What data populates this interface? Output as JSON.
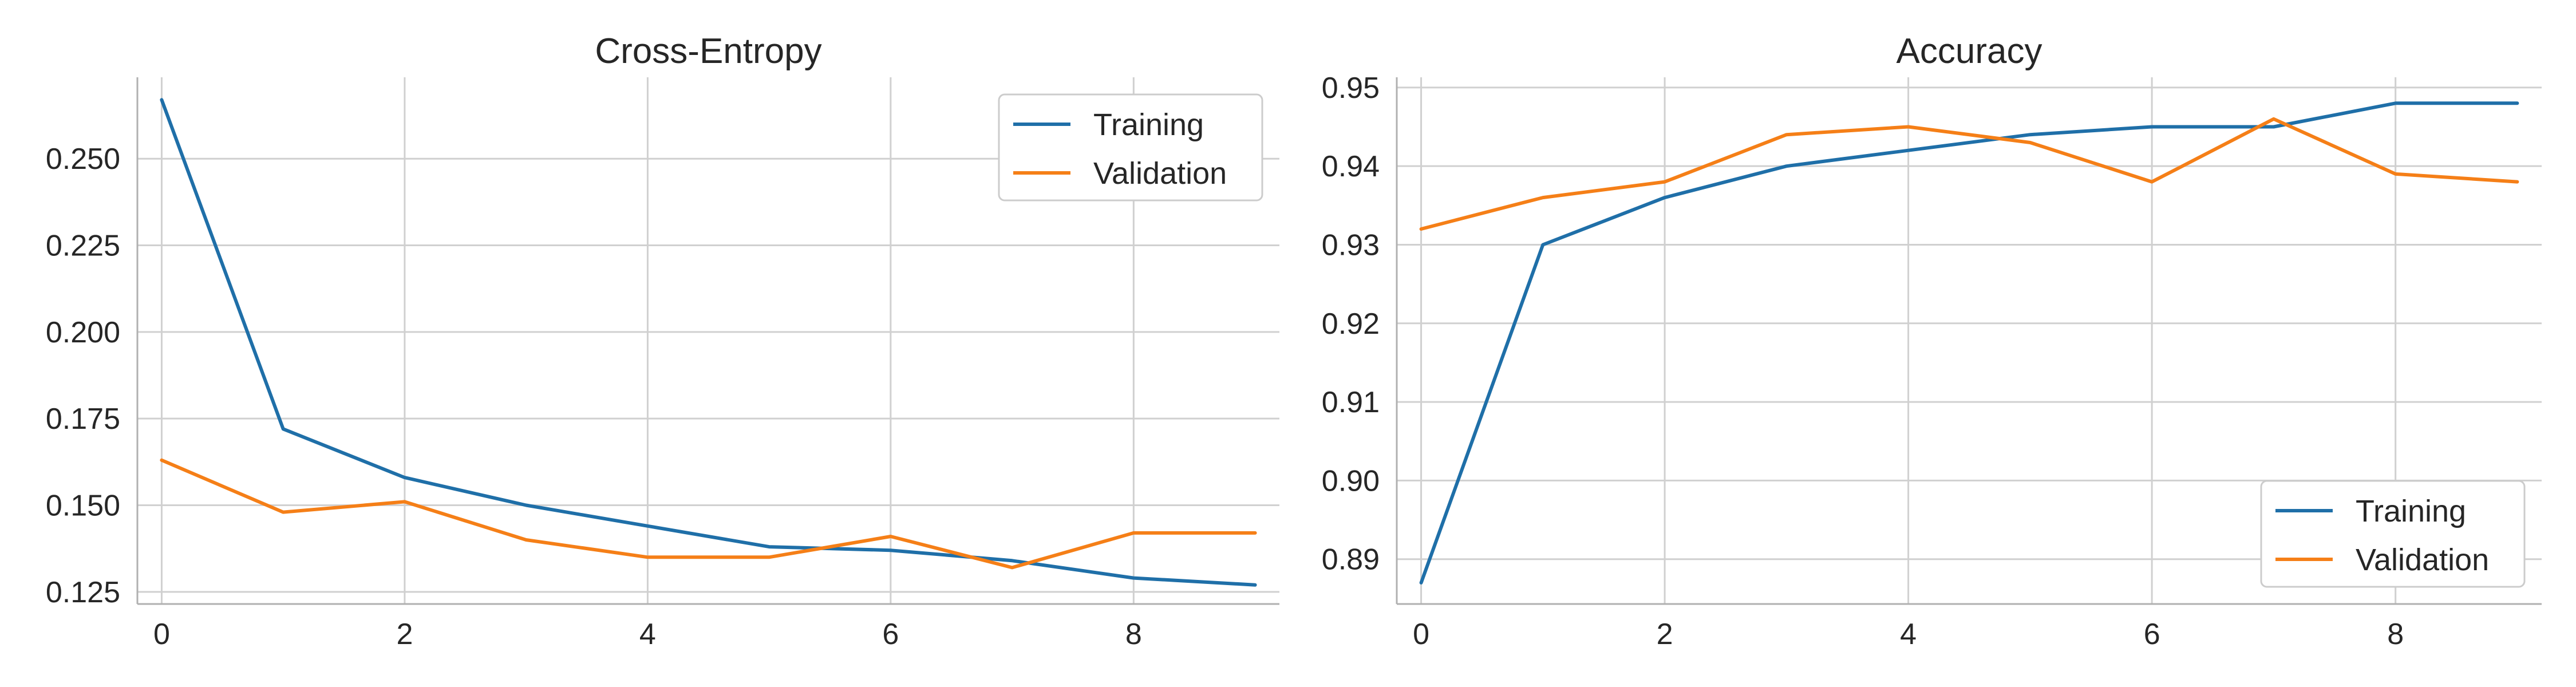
{
  "chart_data": [
    {
      "type": "line",
      "title": "Cross-Entropy",
      "xlabel": "",
      "ylabel": "",
      "x": [
        0,
        1,
        2,
        3,
        4,
        5,
        6,
        7,
        8,
        9
      ],
      "xlim": [
        -0.2,
        9.2
      ],
      "ylim": [
        0.1215,
        0.2735
      ],
      "xticks": [
        0,
        2,
        4,
        6,
        8
      ],
      "xtick_labels": [
        "0",
        "2",
        "4",
        "6",
        "8"
      ],
      "yticks": [
        0.125,
        0.15,
        0.175,
        0.2,
        0.225,
        0.25
      ],
      "ytick_labels": [
        "0.125",
        "0.150",
        "0.175",
        "0.200",
        "0.225",
        "0.250"
      ],
      "grid": true,
      "legend_position": "top-right",
      "series": [
        {
          "name": "Training",
          "color": "#1f6fa8",
          "values": [
            0.267,
            0.172,
            0.158,
            0.15,
            0.144,
            0.138,
            0.137,
            0.134,
            0.129,
            0.127
          ]
        },
        {
          "name": "Validation",
          "color": "#f57f17",
          "values": [
            0.163,
            0.148,
            0.151,
            0.14,
            0.135,
            0.135,
            0.141,
            0.132,
            0.142,
            0.142
          ]
        }
      ]
    },
    {
      "type": "line",
      "title": "Accuracy",
      "xlabel": "",
      "ylabel": "",
      "x": [
        0,
        1,
        2,
        3,
        4,
        5,
        6,
        7,
        8,
        9
      ],
      "xlim": [
        -0.2,
        9.2
      ],
      "ylim": [
        0.8843,
        0.9513
      ],
      "xticks": [
        0,
        2,
        4,
        6,
        8
      ],
      "xtick_labels": [
        "0",
        "2",
        "4",
        "6",
        "8"
      ],
      "yticks": [
        0.89,
        0.9,
        0.91,
        0.92,
        0.93,
        0.94,
        0.95
      ],
      "ytick_labels": [
        "0.89",
        "0.90",
        "0.91",
        "0.92",
        "0.93",
        "0.94",
        "0.95"
      ],
      "grid": true,
      "legend_position": "bottom-right",
      "series": [
        {
          "name": "Training",
          "color": "#1f6fa8",
          "values": [
            0.887,
            0.93,
            0.936,
            0.94,
            0.942,
            0.944,
            0.945,
            0.945,
            0.948,
            0.948
          ]
        },
        {
          "name": "Validation",
          "color": "#f57f17",
          "values": [
            0.932,
            0.936,
            0.938,
            0.944,
            0.945,
            0.943,
            0.938,
            0.946,
            0.939,
            0.938
          ]
        }
      ]
    }
  ]
}
